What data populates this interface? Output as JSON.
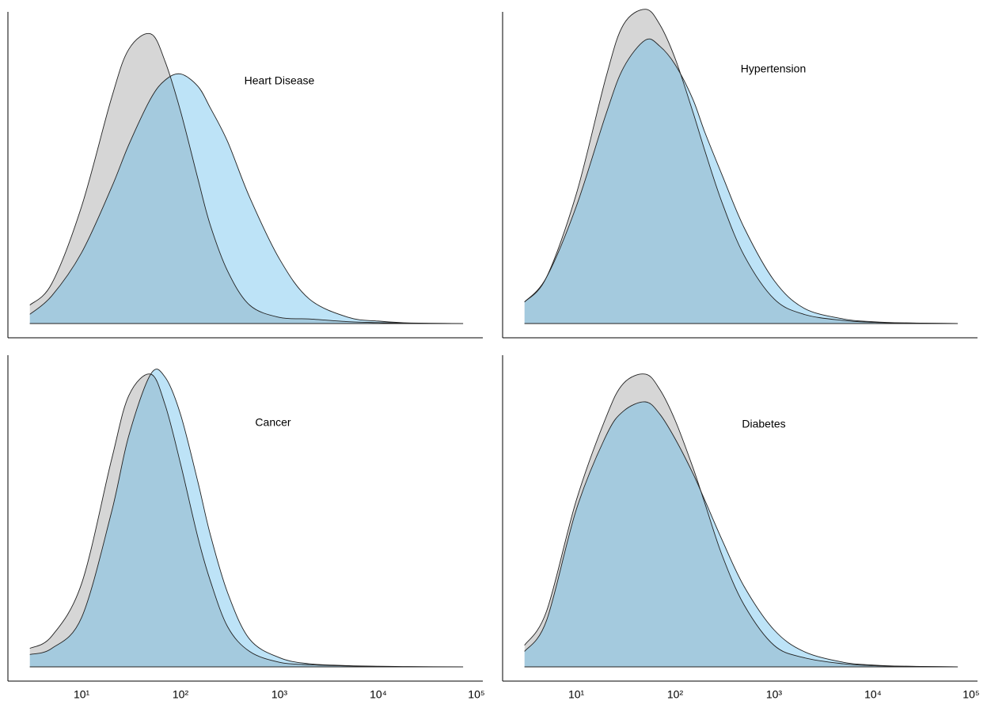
{
  "chart_data": [
    {
      "type": "area",
      "title": "Heart Disease",
      "log_x": true,
      "xlim": [
        1.8,
        114000
      ],
      "ylim": [
        0,
        1.05
      ],
      "x": [
        3,
        5,
        10,
        20,
        30,
        50,
        70,
        100,
        150,
        200,
        300,
        500,
        1000,
        2000,
        5000,
        10000,
        20000,
        72000
      ],
      "series": [
        {
          "color": "#d6d6d6",
          "values": [
            0.06,
            0.13,
            0.38,
            0.73,
            0.89,
            0.94,
            0.85,
            0.69,
            0.47,
            0.32,
            0.17,
            0.06,
            0.02,
            0.015,
            0.006,
            0.003,
            0.001,
            0
          ]
        },
        {
          "color": "#5ab9eb",
          "values": [
            0.03,
            0.09,
            0.23,
            0.44,
            0.58,
            0.73,
            0.79,
            0.81,
            0.77,
            0.7,
            0.59,
            0.41,
            0.21,
            0.08,
            0.02,
            0.008,
            0.002,
            0
          ]
        }
      ]
    },
    {
      "type": "area",
      "title": "Hypertension",
      "log_x": true,
      "xlim": [
        1.8,
        114000
      ],
      "ylim": [
        0,
        1.05
      ],
      "x": [
        3,
        5,
        10,
        20,
        30,
        50,
        70,
        100,
        150,
        200,
        300,
        500,
        1000,
        2000,
        5000,
        10000,
        20000,
        72000
      ],
      "series": [
        {
          "color": "#d6d6d6",
          "values": [
            0.07,
            0.15,
            0.42,
            0.8,
            0.97,
            1.02,
            0.97,
            0.86,
            0.69,
            0.56,
            0.39,
            0.22,
            0.08,
            0.03,
            0.01,
            0.004,
            0.002,
            0
          ]
        },
        {
          "color": "#5ab9eb",
          "values": [
            0.07,
            0.15,
            0.38,
            0.68,
            0.83,
            0.92,
            0.9,
            0.84,
            0.73,
            0.62,
            0.48,
            0.31,
            0.14,
            0.05,
            0.015,
            0.006,
            0.002,
            0
          ]
        }
      ]
    },
    {
      "type": "area",
      "title": "Cancer",
      "log_x": true,
      "xlim": [
        1.8,
        114000
      ],
      "ylim": [
        0,
        1.05
      ],
      "x": [
        3,
        5,
        10,
        20,
        30,
        50,
        70,
        100,
        150,
        200,
        300,
        500,
        1000,
        2000,
        5000,
        10000,
        20000,
        72000
      ],
      "xticks": [
        {
          "value": 10,
          "label": "10¹"
        },
        {
          "value": 100,
          "label": "10²"
        },
        {
          "value": 1000,
          "label": "10³"
        },
        {
          "value": 10000,
          "label": "10⁴"
        },
        {
          "value": 100000,
          "label": "10⁵"
        }
      ],
      "series": [
        {
          "color": "#d6d6d6",
          "values": [
            0.06,
            0.1,
            0.27,
            0.67,
            0.88,
            0.95,
            0.85,
            0.66,
            0.42,
            0.28,
            0.13,
            0.05,
            0.015,
            0.007,
            0.003,
            0.001,
            0,
            0
          ]
        },
        {
          "color": "#5ab9eb",
          "values": [
            0.04,
            0.06,
            0.16,
            0.5,
            0.75,
            0.95,
            0.94,
            0.82,
            0.6,
            0.43,
            0.24,
            0.09,
            0.03,
            0.01,
            0.004,
            0.002,
            0.001,
            0
          ]
        }
      ]
    },
    {
      "type": "area",
      "title": "Diabetes",
      "log_x": true,
      "xlim": [
        1.8,
        114000
      ],
      "ylim": [
        0,
        1.05
      ],
      "x": [
        3,
        5,
        10,
        20,
        30,
        50,
        70,
        100,
        150,
        200,
        300,
        500,
        1000,
        2000,
        5000,
        10000,
        20000,
        72000
      ],
      "xticks": [
        {
          "value": 10,
          "label": "10¹"
        },
        {
          "value": 100,
          "label": "10²"
        },
        {
          "value": 1000,
          "label": "10³"
        },
        {
          "value": 10000,
          "label": "10⁴"
        },
        {
          "value": 100000,
          "label": "10⁵"
        }
      ],
      "series": [
        {
          "color": "#d6d6d6",
          "values": [
            0.07,
            0.18,
            0.54,
            0.81,
            0.92,
            0.95,
            0.9,
            0.8,
            0.65,
            0.53,
            0.36,
            0.2,
            0.07,
            0.03,
            0.01,
            0.004,
            0.002,
            0
          ]
        },
        {
          "color": "#5ab9eb",
          "values": [
            0.05,
            0.15,
            0.51,
            0.75,
            0.83,
            0.86,
            0.82,
            0.74,
            0.63,
            0.54,
            0.41,
            0.26,
            0.12,
            0.05,
            0.015,
            0.006,
            0.002,
            0
          ]
        }
      ]
    }
  ]
}
